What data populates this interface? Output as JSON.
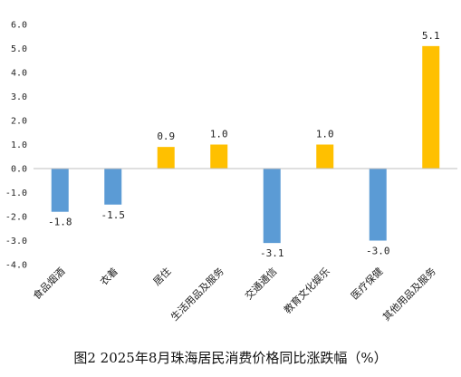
{
  "chart_data": {
    "type": "bar",
    "title": "图2 2025年8月珠海居民消费价格同比涨跌幅（%）",
    "categories": [
      "食品烟酒",
      "衣着",
      "居住",
      "生活用品及服务",
      "交通通信",
      "教育文化娱乐",
      "医疗保健",
      "其他用品及服务"
    ],
    "values": [
      -1.8,
      -1.5,
      0.9,
      1.0,
      -3.1,
      1.0,
      -3.0,
      5.1
    ],
    "value_labels": [
      "-1.8",
      "-1.5",
      "0.9",
      "1.0",
      "-3.1",
      "1.0",
      "-3.0",
      "5.1"
    ],
    "ylim": [
      -4.0,
      6.0
    ],
    "yticks": [
      "6.0",
      "5.0",
      "4.0",
      "3.0",
      "2.0",
      "1.0",
      "0.0",
      "-1.0",
      "-2.0",
      "-3.0",
      "-4.0"
    ],
    "ytick_values": [
      6,
      5,
      4,
      3,
      2,
      1,
      0,
      -1,
      -2,
      -3,
      -4
    ],
    "xlabel": "",
    "ylabel": "",
    "grid": false,
    "legend": "none",
    "colors": {
      "positive": "#FFC000",
      "negative": "#5B9BD5",
      "axis": "#BFBFBF"
    }
  }
}
